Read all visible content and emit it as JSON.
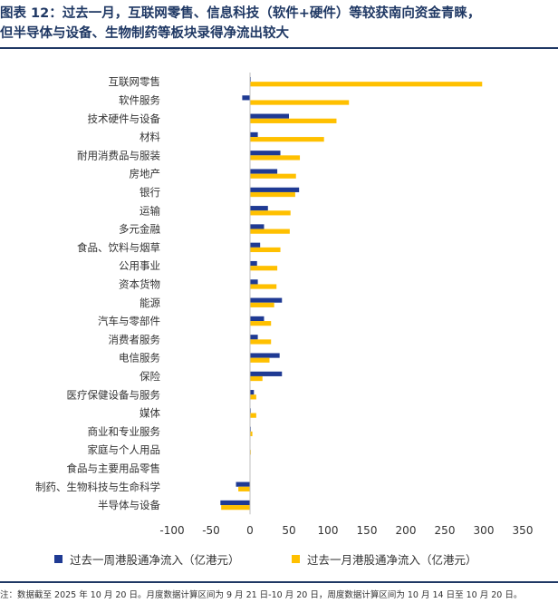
{
  "header": {
    "title_line1": "图表 12：过去一月，互联网零售、信息科技（软件+硬件）等较获南向资金青睐，",
    "title_line2": "但半导体与设备、生物制药等板块录得净流出较大"
  },
  "footer": {
    "source": "注：数据截至 2025 年 10 月 20 日。月度数据计算区间为 9 月 21 日-10 月 20 日，周度数据计算区间为 10 月 14 日至 10 月 20 日。"
  },
  "chart_data": {
    "type": "bar",
    "orientation": "horizontal",
    "categories": [
      "互联网零售",
      "软件服务",
      "技术硬件与设备",
      "材料",
      "耐用消费品与服装",
      "房地产",
      "银行",
      "运输",
      "多元金融",
      "食品、饮料与烟草",
      "公用事业",
      "资本货物",
      "能源",
      "汽车与零部件",
      "消费者服务",
      "电信服务",
      "保险",
      "医疗保健设备与服务",
      "媒体",
      "商业和专业服务",
      "家庭与个人用品",
      "食品与主要用品零售",
      "制药、生物科技与生命科学",
      "半导体与设备"
    ],
    "series": [
      {
        "name": "过去一周港股通净流入（亿港元）",
        "color": "#1f3a93",
        "values": [
          1,
          -10,
          50,
          10,
          39,
          35,
          63,
          23,
          18,
          13,
          9,
          10,
          41,
          18,
          10,
          38,
          41,
          5,
          1,
          1,
          0,
          0,
          -18,
          -38
        ]
      },
      {
        "name": "过去一月港股通净流入（亿港元）",
        "color": "#ffc000",
        "values": [
          298,
          127,
          111,
          95,
          64,
          59,
          58,
          52,
          51,
          39,
          35,
          34,
          31,
          27,
          27,
          25,
          16,
          8,
          8,
          3,
          1,
          0,
          -15,
          -37
        ]
      }
    ],
    "xlim": [
      -100,
      350
    ],
    "xticks": [
      "-100",
      "-50",
      "0",
      "50",
      "100",
      "150",
      "200",
      "250",
      "300",
      "350"
    ],
    "legend_position": "bottom",
    "grid": false
  }
}
